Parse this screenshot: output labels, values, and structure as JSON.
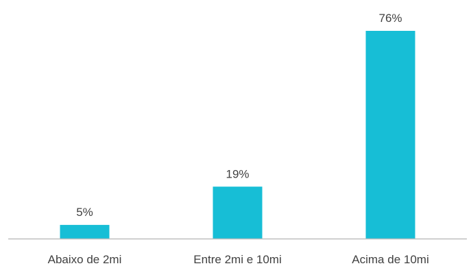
{
  "chart_data": {
    "type": "bar",
    "categories": [
      "Abaixo de 2mi",
      "Entre 2mi e 10mi",
      "Acima de 10mi"
    ],
    "values": [
      5,
      19,
      76
    ],
    "value_labels": [
      "5%",
      "19%",
      "76%"
    ],
    "ylim": [
      0,
      80
    ],
    "grid": false,
    "legend": "none",
    "bar_color": "#17BED6",
    "axis_color": "#BFBFBF",
    "label_color": "#404040"
  }
}
